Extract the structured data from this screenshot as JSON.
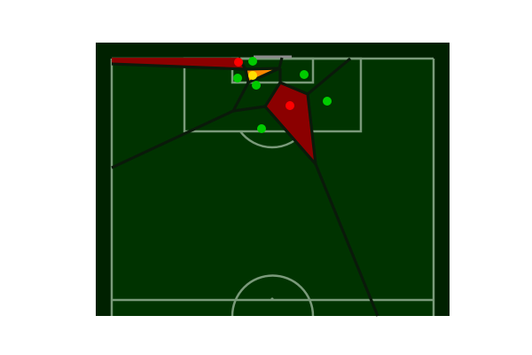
{
  "colors": {
    "page_background": "#ffffff",
    "frame_background": "#002100",
    "pitch_grass": "#003300",
    "pitch_lines": "#7a9a7a",
    "voronoi_edges": "#0a1a0a",
    "team_home": "#00cc00",
    "team_away": "#ff0000",
    "ball": "#ffdd00",
    "region_highlight": "#8b0000",
    "region_ball_owner": "#ff8800",
    "goal_frame": "#8c8c8c"
  },
  "players": {
    "home": 6,
    "away": 2
  },
  "ball_visible": true
}
